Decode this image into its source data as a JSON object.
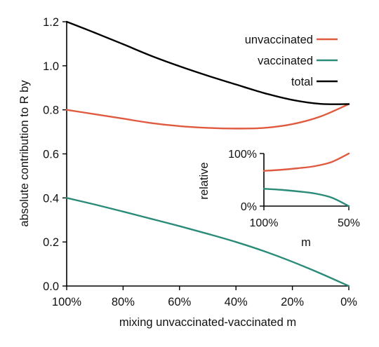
{
  "chart_data": [
    {
      "type": "line",
      "id": "main",
      "xlabel": "mixing unvaccinated-vaccinated m",
      "ylabel": "absolute contribution to R by",
      "x_ticks": [
        "100%",
        "80%",
        "60%",
        "40%",
        "20%",
        "0%"
      ],
      "y_ticks": [
        "0.0",
        "0.2",
        "0.4",
        "0.6",
        "0.8",
        "1.0",
        "1.2"
      ],
      "xlim": [
        100,
        0
      ],
      "ylim": [
        0,
        1.2
      ],
      "grid": false,
      "legend_position": "top-right",
      "x": [
        100,
        90,
        80,
        70,
        60,
        50,
        40,
        30,
        20,
        10,
        0
      ],
      "series": [
        {
          "name": "unvaccinated",
          "color": "#e05a3f",
          "values": [
            0.8,
            0.78,
            0.76,
            0.74,
            0.726,
            0.718,
            0.715,
            0.718,
            0.735,
            0.77,
            0.826
          ]
        },
        {
          "name": "vaccinated",
          "color": "#2a8b78",
          "values": [
            0.4,
            0.37,
            0.338,
            0.305,
            0.272,
            0.237,
            0.2,
            0.158,
            0.11,
            0.057,
            0.0
          ]
        },
        {
          "name": "total",
          "color": "#000000",
          "values": [
            1.2,
            1.15,
            1.098,
            1.045,
            0.998,
            0.955,
            0.915,
            0.876,
            0.845,
            0.827,
            0.826
          ]
        }
      ]
    },
    {
      "type": "line",
      "id": "inset",
      "xlabel": "m",
      "ylabel": "relative",
      "x_ticks": [
        "100%",
        "50%"
      ],
      "y_ticks": [
        "0%",
        "100%"
      ],
      "xlim": [
        100,
        50
      ],
      "ylim": [
        0,
        100
      ],
      "x": [
        100,
        90,
        80,
        70,
        60,
        50
      ],
      "series": [
        {
          "color": "#e05a3f",
          "values": [
            67,
            69,
            72,
            76,
            84,
            100
          ]
        },
        {
          "color": "#2a8b78",
          "values": [
            33,
            31,
            28,
            24,
            16,
            0
          ]
        }
      ]
    }
  ]
}
